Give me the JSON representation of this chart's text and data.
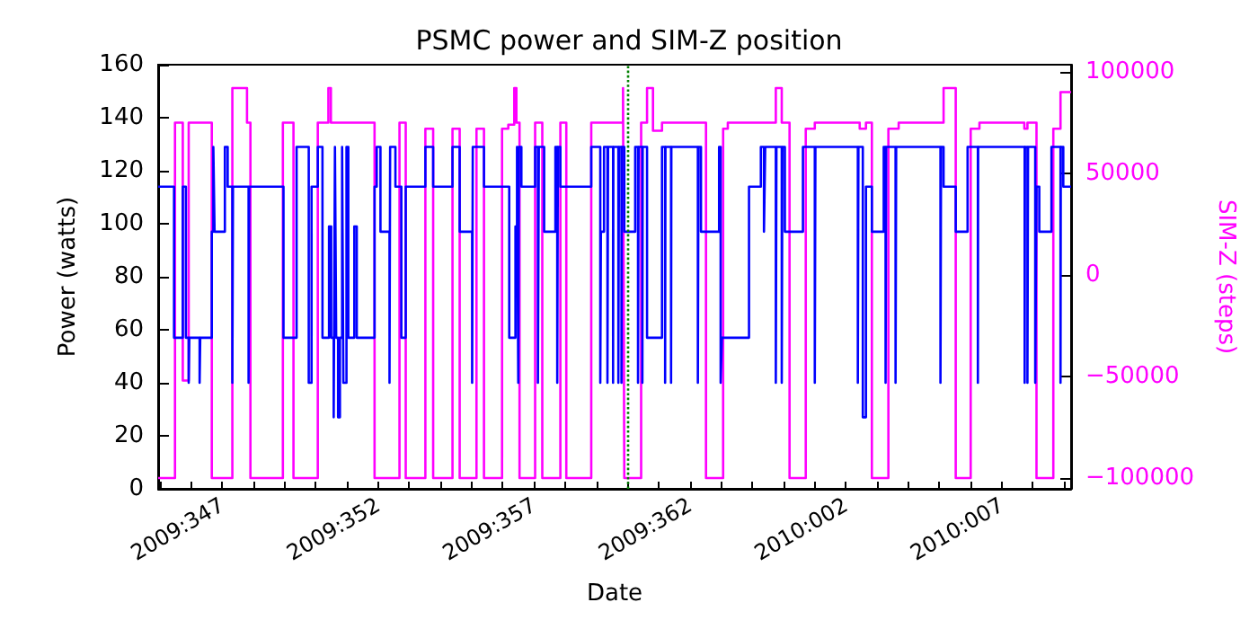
{
  "chart_data": {
    "type": "step",
    "title": "PSMC power and SIM-Z position",
    "xlabel": "Date",
    "ylabel": "Power (watts)",
    "y2label": "SIM-Z (steps)",
    "xlim": [
      "2009-12-10T22:48",
      "2010-01-09T05:31"
    ],
    "xticks": [
      {
        "value": "2009-12-11",
        "label": null
      },
      {
        "value": "2009-12-12",
        "label": null
      },
      {
        "value": "2009-12-13",
        "label": "2009:347"
      },
      {
        "value": "2009-12-14",
        "label": null
      },
      {
        "value": "2009-12-15",
        "label": null
      },
      {
        "value": "2009-12-16",
        "label": null
      },
      {
        "value": "2009-12-17",
        "label": null
      },
      {
        "value": "2009-12-18",
        "label": "2009:352"
      },
      {
        "value": "2009-12-19",
        "label": null
      },
      {
        "value": "2009-12-20",
        "label": null
      },
      {
        "value": "2009-12-21",
        "label": null
      },
      {
        "value": "2009-12-22",
        "label": null
      },
      {
        "value": "2009-12-23",
        "label": "2009:357"
      },
      {
        "value": "2009-12-24",
        "label": null
      },
      {
        "value": "2009-12-25",
        "label": null
      },
      {
        "value": "2009-12-26",
        "label": null
      },
      {
        "value": "2009-12-27",
        "label": null
      },
      {
        "value": "2009-12-28",
        "label": "2009:362"
      },
      {
        "value": "2009-12-29",
        "label": null
      },
      {
        "value": "2009-12-30",
        "label": null
      },
      {
        "value": "2009-12-31",
        "label": null
      },
      {
        "value": "2010-01-01",
        "label": null
      },
      {
        "value": "2010-01-02",
        "label": "2010:002"
      },
      {
        "value": "2010-01-03",
        "label": null
      },
      {
        "value": "2010-01-04",
        "label": null
      },
      {
        "value": "2010-01-05",
        "label": null
      },
      {
        "value": "2010-01-06",
        "label": null
      },
      {
        "value": "2010-01-07",
        "label": "2010:007"
      },
      {
        "value": "2010-01-08",
        "label": null
      },
      {
        "value": "2010-01-09",
        "label": null
      }
    ],
    "ylim": [
      0,
      160
    ],
    "yticks": [
      0,
      20,
      40,
      60,
      80,
      100,
      120,
      140,
      160
    ],
    "y2lim": [
      -105300,
      103500
    ],
    "y2ticks": [
      {
        "value": -100000,
        "label": "−100000"
      },
      {
        "value": -50000,
        "label": "−50000"
      },
      0,
      50000,
      100000
    ],
    "grid": false,
    "marker": "none",
    "line_style": "solid",
    "ref_lines": [
      {
        "axis": "x",
        "value": "2009-12-26T00:00",
        "color": "#008000",
        "line_style": "dotted"
      }
    ],
    "series": [
      {
        "color": "#0000ff",
        "axis": "y",
        "x": [
          "2009-12-10T22:48",
          "2009-12-11T11:02",
          "2009-12-11T17:46",
          "2009-12-11T20:10",
          "2009-12-11T22:19",
          "2009-12-11T22:48",
          "2009-12-12T06:43",
          "2009-12-12T07:12",
          "2009-12-12T16:05",
          "2009-12-12T17:17",
          "2009-12-12T18:14",
          "2009-12-13T02:10",
          "2009-12-13T04:19",
          "2009-12-13T07:55",
          "2009-12-13T08:24",
          "2009-12-13T20:24",
          "2009-12-13T20:53",
          "2009-12-14T23:17",
          "2009-12-15T09:22",
          "2009-12-15T18:43",
          "2009-12-15T20:53",
          "2009-12-16T01:41",
          "2009-12-16T05:17",
          "2009-12-16T10:19",
          "2009-12-16T12:00",
          "2009-12-16T13:55",
          "2009-12-16T14:53",
          "2009-12-16T15:50",
          "2009-12-16T17:17",
          "2009-12-16T18:43",
          "2009-12-16T20:24",
          "2009-12-16T21:22",
          "2009-12-16T23:46",
          "2009-12-17T01:12",
          "2009-12-17T05:46",
          "2009-12-17T07:41",
          "2009-12-17T21:22",
          "2009-12-17T23:02",
          "2009-12-18T01:55",
          "2009-12-18T08:53",
          "2009-12-18T09:22",
          "2009-12-18T13:26",
          "2009-12-18T18:00",
          "2009-12-18T21:22",
          "2009-12-19T12:29",
          "2009-12-19T18:29",
          "2009-12-20T09:22",
          "2009-12-20T14:53",
          "2009-12-21T00:29",
          "2009-12-21T00:58",
          "2009-12-21T09:36",
          "2009-12-22T05:02",
          "2009-12-22T09:50",
          "2009-12-22T11:02",
          "2009-12-22T12:00",
          "2009-12-22T12:29",
          "2009-12-22T14:24",
          "2009-12-23T00:58",
          "2009-12-23T03:07",
          "2009-12-23T03:50",
          "2009-12-23T07:55",
          "2009-12-23T16:34",
          "2009-12-23T18:00",
          "2009-12-23T18:29",
          "2009-12-23T20:24",
          "2009-12-24T20:10",
          "2009-12-25T03:07",
          "2009-12-25T03:36",
          "2009-12-25T06:00",
          "2009-12-25T08:38",
          "2009-12-25T09:07",
          "2009-12-25T12:58",
          "2009-12-25T13:12",
          "2009-12-25T17:02",
          "2009-12-25T17:31",
          "2009-12-25T19:26",
          "2009-12-25T19:41",
          "2009-12-25T21:36",
          "2009-12-26T06:00",
          "2009-12-26T08:10",
          "2009-12-26T08:38",
          "2009-12-26T11:31",
          "2009-12-26T11:46",
          "2009-12-26T15:07",
          "2009-12-27T02:38",
          "2009-12-27T05:02",
          "2009-12-27T05:17",
          "2009-12-27T09:36",
          "2009-12-27T09:50",
          "2009-12-28T06:14",
          "2009-12-28T06:43",
          "2009-12-28T08:38",
          "2009-12-28T22:34",
          "2009-12-28T23:46",
          "2009-12-29T00:43",
          "2009-12-29T21:36",
          "2009-12-30T06:43",
          "2009-12-30T09:07",
          "2009-12-30T10:05",
          "2009-12-30T18:14",
          "2009-12-30T18:43",
          "2009-12-30T22:48",
          "2009-12-30T23:17",
          "2009-12-31T01:12",
          "2009-12-31T15:07",
          "2010-01-01T00:14",
          "2010-01-01T00:43",
          "2010-01-02T09:22",
          "2010-01-02T09:50",
          "2010-01-02T13:12",
          "2010-01-02T15:36",
          "2010-01-02T20:10",
          "2010-01-03T05:17",
          "2010-01-03T06:43",
          "2010-01-03T07:12",
          "2010-01-03T14:24",
          "2010-01-03T14:53",
          "2010-01-05T00:58",
          "2010-01-05T01:26",
          "2010-01-05T03:22",
          "2010-01-05T12:43",
          "2010-01-05T21:50",
          "2010-01-06T05:46",
          "2010-01-06T06:00",
          "2010-01-07T17:46",
          "2010-01-07T18:00",
          "2010-01-07T19:55",
          "2010-01-07T20:24",
          "2010-01-08T01:55",
          "2010-01-08T02:53",
          "2010-01-08T05:02",
          "2010-01-08T14:24",
          "2010-01-08T21:22",
          "2010-01-08T21:36",
          "2010-01-08T23:31",
          "2010-01-09T05:31"
        ],
        "values": [
          114,
          57,
          114,
          57,
          40,
          57,
          40,
          57,
          97,
          129,
          97,
          129,
          114,
          40,
          114,
          40,
          114,
          57,
          129,
          40,
          114,
          129,
          57,
          99,
          57,
          27,
          129,
          57,
          27,
          57,
          129,
          40,
          129,
          57,
          99,
          57,
          114,
          129,
          97,
          40,
          129,
          114,
          57,
          114,
          129,
          114,
          129,
          97,
          40,
          129,
          114,
          57,
          99,
          129,
          40,
          129,
          114,
          129,
          40,
          129,
          97,
          129,
          40,
          129,
          114,
          129,
          40,
          97,
          129,
          40,
          129,
          40,
          129,
          40,
          129,
          40,
          129,
          97,
          129,
          40,
          129,
          40,
          129,
          57,
          129,
          40,
          129,
          40,
          129,
          40,
          129,
          97,
          129,
          40,
          57,
          114,
          129,
          97,
          129,
          40,
          129,
          40,
          129,
          97,
          129,
          40,
          129,
          40,
          129,
          27,
          114,
          97,
          129,
          40,
          129,
          40,
          129,
          40,
          129,
          114,
          97,
          129,
          40,
          129,
          40,
          129,
          40,
          129,
          40,
          114,
          97,
          129,
          40,
          129,
          114,
          114
        ]
      },
      {
        "color": "#ff00ff",
        "axis": "y2",
        "x": [
          "2009-12-10T22:48",
          "2009-12-11T11:46",
          "2009-12-11T17:46",
          "2009-12-11T22:19",
          "2009-12-12T16:05",
          "2009-12-13T07:55",
          "2009-12-13T19:12",
          "2009-12-13T21:50",
          "2009-12-14T22:48",
          "2009-12-15T06:58",
          "2009-12-16T01:41",
          "2009-12-16T09:50",
          "2009-12-16T11:46",
          "2009-12-17T21:22",
          "2009-12-18T16:34",
          "2009-12-18T21:22",
          "2009-12-19T12:29",
          "2009-12-19T18:29",
          "2009-12-20T09:22",
          "2009-12-20T14:53",
          "2009-12-21T03:50",
          "2009-12-21T09:36",
          "2009-12-21T23:31",
          "2009-12-22T04:19",
          "2009-12-22T08:53",
          "2009-12-22T10:34",
          "2009-12-22T12:58",
          "2009-12-23T00:58",
          "2009-12-23T06:29",
          "2009-12-23T20:24",
          "2009-12-24T00:58",
          "2009-12-24T20:10",
          "2009-12-25T20:38",
          "2009-12-25T21:36",
          "2009-12-26T10:34",
          "2009-12-26T15:07",
          "2009-12-26T19:41",
          "2009-12-27T02:38",
          "2009-12-28T12:29",
          "2009-12-29T01:41",
          "2009-12-29T05:17",
          "2009-12-30T18:14",
          "2009-12-30T22:48",
          "2009-12-31T04:48",
          "2009-12-31T17:17",
          "2010-01-01T00:14",
          "2010-01-02T10:48",
          "2010-01-02T15:36",
          "2010-01-02T20:10",
          "2010-01-03T08:53",
          "2010-01-03T16:48",
          "2010-01-05T03:22",
          "2010-01-05T12:43",
          "2010-01-06T00:14",
          "2010-01-06T06:58",
          "2010-01-07T17:31",
          "2010-01-07T19:55",
          "2010-01-08T02:53",
          "2010-01-08T15:50",
          "2010-01-08T21:22",
          "2010-01-09T05:31"
        ],
        "values": [
          -100000,
          75000,
          -52000,
          75000,
          -100000,
          92000,
          75000,
          -100000,
          75000,
          -100000,
          75000,
          92000,
          75000,
          -100000,
          75000,
          -100000,
          72000,
          -100000,
          72000,
          -100000,
          72000,
          -100000,
          72000,
          74000,
          92000,
          75000,
          -100000,
          75000,
          -100000,
          75000,
          -100000,
          75000,
          92000,
          -100000,
          75000,
          92000,
          71000,
          75000,
          -100000,
          72000,
          75000,
          92000,
          75000,
          -100000,
          72000,
          75000,
          72000,
          75000,
          -100000,
          72000,
          75000,
          92000,
          -100000,
          72000,
          75000,
          72000,
          75000,
          -100000,
          72000,
          90000,
          90000
        ]
      }
    ]
  }
}
